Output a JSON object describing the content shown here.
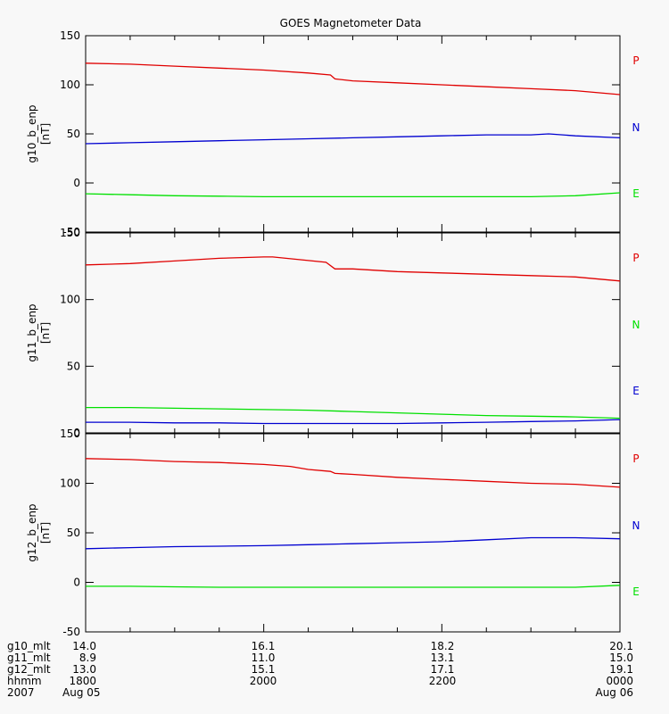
{
  "chart_data": {
    "type": "line",
    "title": "GOES Magnetometer Data",
    "x": {
      "range_hours": [
        18,
        24
      ],
      "major_tick_hours": [
        18,
        20,
        22,
        24
      ],
      "minor_step_hours": 0.5
    },
    "panels": [
      {
        "ylabel": "g10_b_enp",
        "unit": "[nT]",
        "ylim": [
          -50,
          150
        ],
        "yticks": [
          -50,
          0,
          50,
          100,
          150
        ],
        "ytick_labels": [
          "-50",
          "0",
          "50",
          "100",
          "150"
        ],
        "series": [
          {
            "name": "P",
            "color": "#e00000",
            "x": [
              18,
              18.5,
              19,
              19.5,
              20,
              20.5,
              20.75,
              20.8,
              21,
              21.5,
              22,
              22.5,
              23,
              23.5,
              24
            ],
            "values": [
              122,
              121,
              119,
              117,
              115,
              112,
              110,
              106,
              104,
              102,
              100,
              98,
              96,
              94,
              90
            ]
          },
          {
            "name": "N",
            "color": "#0000d0",
            "x": [
              18,
              18.5,
              19,
              19.5,
              20,
              20.5,
              21,
              21.5,
              22,
              22.5,
              23,
              23.2,
              23.5,
              24
            ],
            "values": [
              40,
              41,
              42,
              43,
              44,
              45,
              46,
              47,
              48,
              49,
              49,
              50,
              48,
              46
            ]
          },
          {
            "name": "E",
            "color": "#00e000",
            "x": [
              18,
              18.5,
              19,
              19.5,
              20,
              20.5,
              21,
              21.5,
              22,
              22.5,
              23,
              23.5,
              24
            ],
            "values": [
              -11,
              -12,
              -13,
              -13.5,
              -14,
              -14,
              -14,
              -14,
              -14,
              -14,
              -14,
              -13,
              -10
            ]
          }
        ]
      },
      {
        "ylabel": "g11_b_enp",
        "unit": "[nT]",
        "ylim": [
          0,
          150
        ],
        "yticks": [
          0,
          50,
          100,
          150
        ],
        "ytick_labels": [
          "0",
          "50",
          "100",
          "150"
        ],
        "series": [
          {
            "name": "P",
            "color": "#e00000",
            "x": [
              18,
              18.5,
              19,
              19.5,
              20,
              20.1,
              20.4,
              20.7,
              20.8,
              21,
              21.5,
              22,
              22.5,
              23,
              23.5,
              24
            ],
            "values": [
              126,
              127,
              129,
              131,
              132,
              132,
              130,
              128,
              123,
              123,
              121,
              120,
              119,
              118,
              117,
              114
            ]
          },
          {
            "name": "N",
            "color": "#00e000",
            "x": [
              18,
              18.5,
              19,
              19.5,
              20,
              20.5,
              21,
              21.5,
              22,
              22.5,
              23,
              23.5,
              24
            ],
            "values": [
              19,
              19,
              18.5,
              18,
              17.5,
              17,
              16,
              15,
              14,
              13,
              12.5,
              12,
              11
            ]
          },
          {
            "name": "E",
            "color": "#0000d0",
            "x": [
              18,
              18.5,
              19,
              19.5,
              20,
              20.5,
              21,
              21.5,
              22,
              22.5,
              23,
              23.5,
              24
            ],
            "values": [
              8,
              8,
              7.5,
              7.5,
              7,
              7,
              7,
              7,
              7.5,
              8,
              8.5,
              9,
              10
            ]
          }
        ]
      },
      {
        "ylabel": "g12_b_enp",
        "unit": "[nT]",
        "ylim": [
          -50,
          150
        ],
        "yticks": [
          -50,
          0,
          50,
          100,
          150
        ],
        "ytick_labels": [
          "-50",
          "0",
          "50",
          "100",
          "150"
        ],
        "series": [
          {
            "name": "P",
            "color": "#e00000",
            "x": [
              18,
              18.5,
              19,
              19.5,
              20,
              20.3,
              20.5,
              20.75,
              20.8,
              21,
              21.5,
              22,
              22.5,
              23,
              23.5,
              24
            ],
            "values": [
              125,
              124,
              122,
              121,
              119,
              117,
              114,
              112,
              110,
              109,
              106,
              104,
              102,
              100,
              99,
              96
            ]
          },
          {
            "name": "N",
            "color": "#0000d0",
            "x": [
              18,
              18.5,
              19,
              19.5,
              20,
              20.5,
              21,
              21.5,
              22,
              22.5,
              23,
              23.5,
              24
            ],
            "values": [
              34,
              35,
              36,
              36.5,
              37,
              38,
              39,
              40,
              41,
              43,
              45,
              45,
              44
            ]
          },
          {
            "name": "E",
            "color": "#00e000",
            "x": [
              18,
              18.5,
              19,
              19.5,
              20,
              20.5,
              21,
              21.5,
              22,
              22.5,
              23,
              23.5,
              24
            ],
            "values": [
              -4,
              -4,
              -4.5,
              -5,
              -5,
              -5,
              -5,
              -5,
              -5,
              -5,
              -5,
              -5,
              -3
            ]
          }
        ]
      }
    ],
    "footer": {
      "rows": [
        {
          "label": "g10_mlt",
          "values": [
            "14.0",
            "16.1",
            "18.2",
            "20.1"
          ]
        },
        {
          "label": "g11_mlt",
          "values": [
            "8.9",
            "11.0",
            "13.1",
            "15.0"
          ]
        },
        {
          "label": "g12_mlt",
          "values": [
            "13.0",
            "15.1",
            "17.1",
            "19.1"
          ]
        },
        {
          "label": "hhmm",
          "values": [
            "1800",
            "2000",
            "2200",
            "0000"
          ]
        },
        {
          "label": "2007",
          "values": [
            "Aug 05",
            "",
            "",
            "Aug 06"
          ]
        }
      ]
    }
  }
}
